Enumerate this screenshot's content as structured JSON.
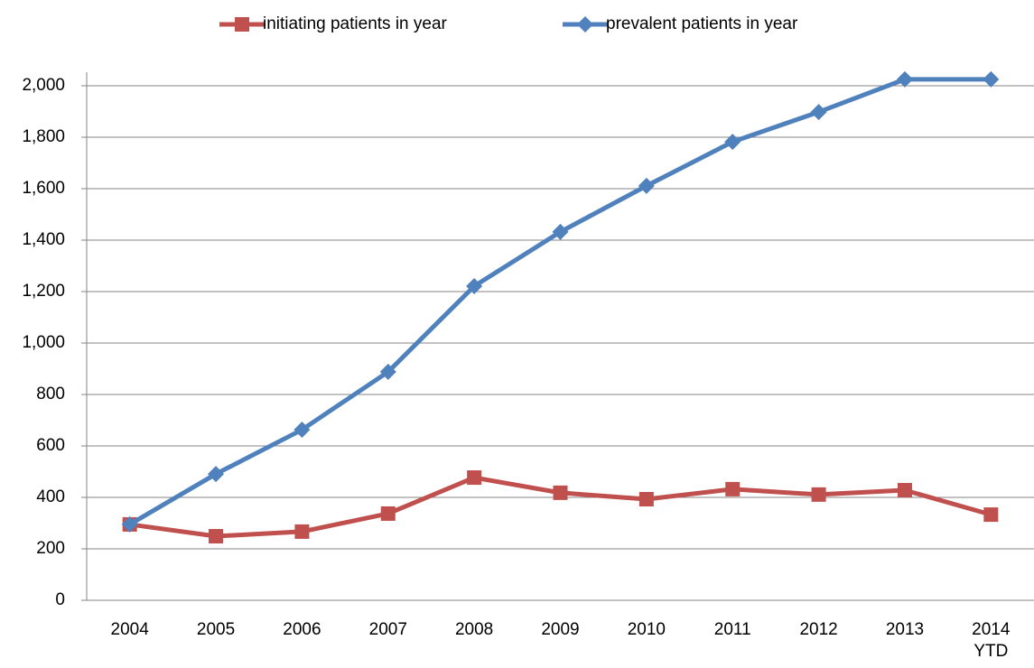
{
  "chart_data": {
    "type": "line",
    "categories": [
      "2004",
      "2005",
      "2006",
      "2007",
      "2008",
      "2009",
      "2010",
      "2011",
      "2012",
      "2013",
      "2014 YTD"
    ],
    "series": [
      {
        "name": "initiating patients in year",
        "color": "#c0504d",
        "marker": "square",
        "values": [
          295,
          249,
          267,
          337,
          477,
          418,
          393,
          432,
          411,
          428,
          333
        ]
      },
      {
        "name": "prevalent patients in year",
        "color": "#4f81bd",
        "marker": "diamond",
        "values": [
          295,
          491,
          663,
          888,
          1221,
          1432,
          1611,
          1782,
          1898,
          2025,
          2025
        ]
      }
    ],
    "ylim": [
      0,
      2000
    ],
    "yticks": [
      0,
      200,
      400,
      600,
      800,
      {
        "value": 1000,
        "label": "1,000"
      },
      {
        "value": 1200,
        "label": "1,200"
      },
      {
        "value": 1400,
        "label": "1,400"
      },
      {
        "value": 1600,
        "label": "1,600"
      },
      {
        "value": 1800,
        "label": "1,800"
      },
      {
        "value": 2000,
        "label": "2,000"
      }
    ],
    "grid": true,
    "legend": "top"
  }
}
